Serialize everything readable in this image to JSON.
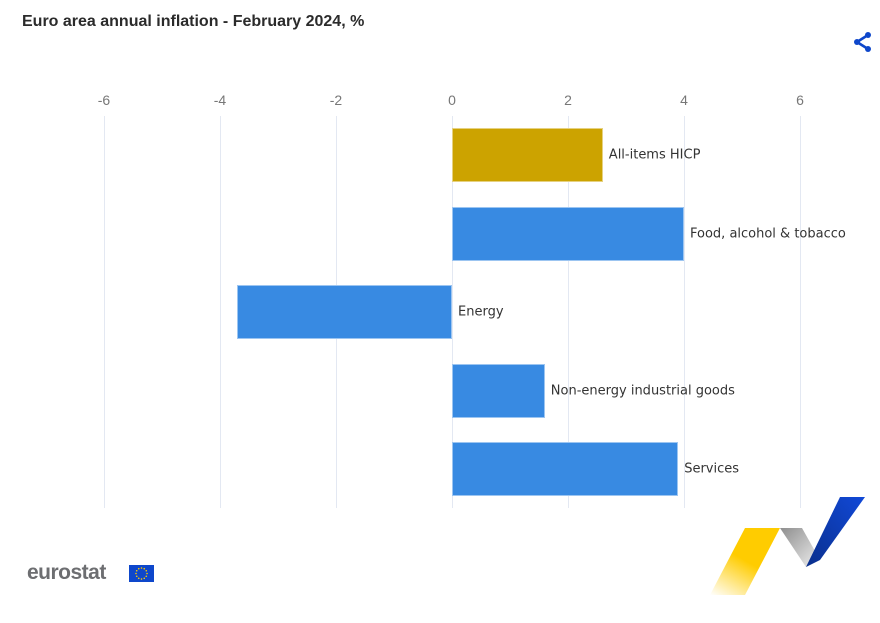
{
  "title": "Euro area annual inflation - February 2024, %",
  "share_icon": "share-icon",
  "logo": {
    "text": "eurostat",
    "flag_icon": "eu-flag-icon"
  },
  "colors": {
    "highlight": "#cca300",
    "bar": "#388ae2",
    "grid": "#e3e8f2",
    "share": "#0e47cb"
  },
  "axis": {
    "ticks": [
      "-6",
      "-4",
      "-2",
      "0",
      "2",
      "4",
      "6"
    ]
  },
  "chart_data": {
    "type": "bar",
    "orientation": "horizontal",
    "title": "Euro area annual inflation - February 2024, %",
    "categories": [
      "All-items HICP",
      "Food, alcohol & tobacco",
      "Energy",
      "Non-energy industrial goods",
      "Services"
    ],
    "values": [
      2.6,
      4.0,
      -3.7,
      1.6,
      3.9
    ],
    "colors": [
      "#cca300",
      "#388ae2",
      "#388ae2",
      "#388ae2",
      "#388ae2"
    ],
    "xlabel": "",
    "ylabel": "",
    "xlim": [
      -6,
      7
    ],
    "xticks": [
      -6,
      -4,
      -2,
      0,
      2,
      4,
      6
    ],
    "grid": true,
    "axis_position": "top",
    "legend": "none",
    "labels_position": "end of bar"
  }
}
